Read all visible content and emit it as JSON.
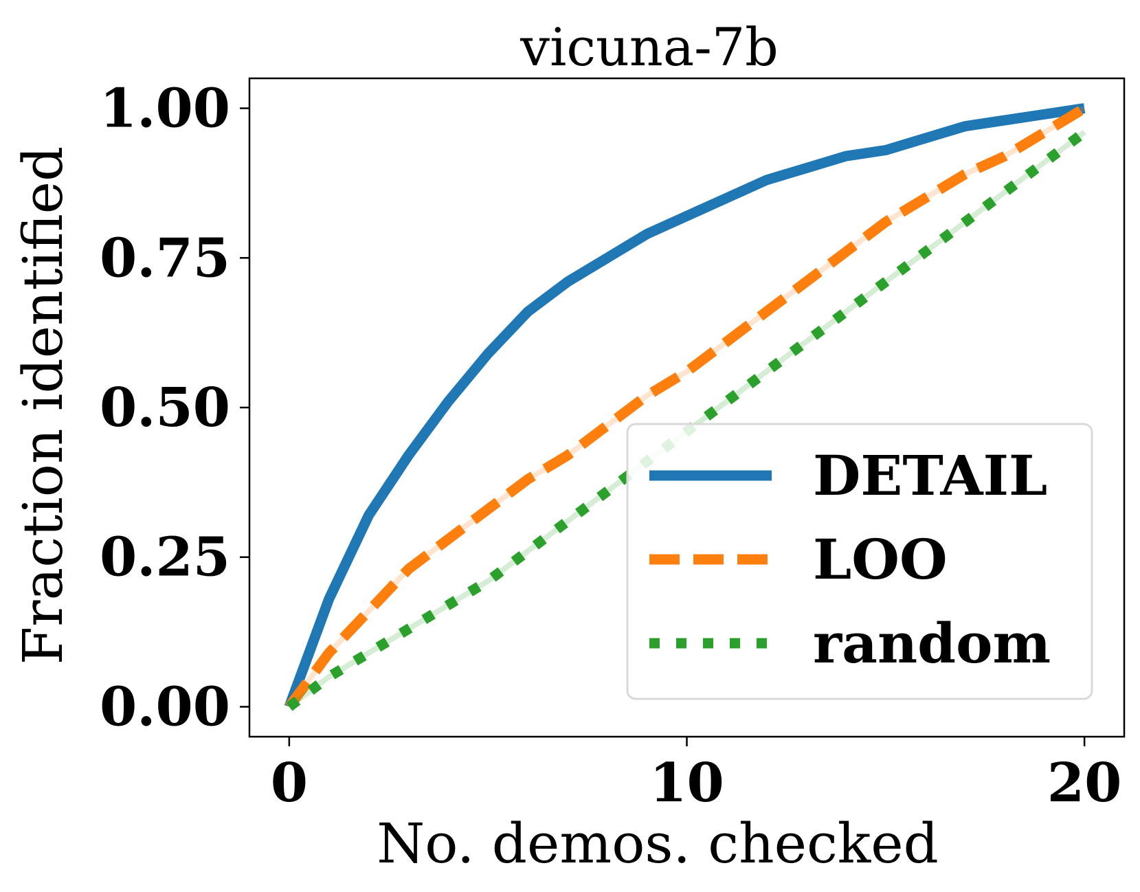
{
  "chart_data": {
    "type": "line",
    "title": "vicuna-7b",
    "xlabel": "No. demos. checked",
    "ylabel": "Fraction identified",
    "xlim": [
      -1,
      21
    ],
    "ylim": [
      -0.05,
      1.05
    ],
    "xticks": [
      0,
      10,
      20
    ],
    "xtick_labels": [
      "0",
      "10",
      "20"
    ],
    "yticks": [
      0.0,
      0.25,
      0.5,
      0.75,
      1.0
    ],
    "ytick_labels": [
      "0.00",
      "0.25",
      "0.50",
      "0.75",
      "1.00"
    ],
    "grid": false,
    "legend_position": "lower-right",
    "x": [
      0,
      1,
      2,
      3,
      4,
      5,
      6,
      7,
      8,
      9,
      10,
      11,
      12,
      13,
      14,
      15,
      16,
      17,
      18,
      19,
      20
    ],
    "series": [
      {
        "name": "DETAIL",
        "color": "#1f77b4",
        "style": "solid",
        "values": [
          0.0,
          0.18,
          0.32,
          0.42,
          0.51,
          0.59,
          0.66,
          0.71,
          0.75,
          0.79,
          0.82,
          0.85,
          0.88,
          0.9,
          0.92,
          0.93,
          0.95,
          0.97,
          0.98,
          0.99,
          1.0
        ]
      },
      {
        "name": "LOO",
        "color": "#ff7f0e",
        "style": "dashed",
        "values": [
          0.0,
          0.09,
          0.16,
          0.23,
          0.28,
          0.33,
          0.38,
          0.42,
          0.47,
          0.52,
          0.56,
          0.61,
          0.66,
          0.71,
          0.76,
          0.81,
          0.85,
          0.89,
          0.92,
          0.96,
          1.0
        ]
      },
      {
        "name": "random",
        "color": "#2ca02c",
        "style": "dotted",
        "values": [
          0.0,
          0.05,
          0.09,
          0.13,
          0.17,
          0.21,
          0.26,
          0.31,
          0.36,
          0.41,
          0.46,
          0.51,
          0.56,
          0.61,
          0.66,
          0.71,
          0.76,
          0.81,
          0.86,
          0.91,
          0.96
        ]
      }
    ]
  }
}
